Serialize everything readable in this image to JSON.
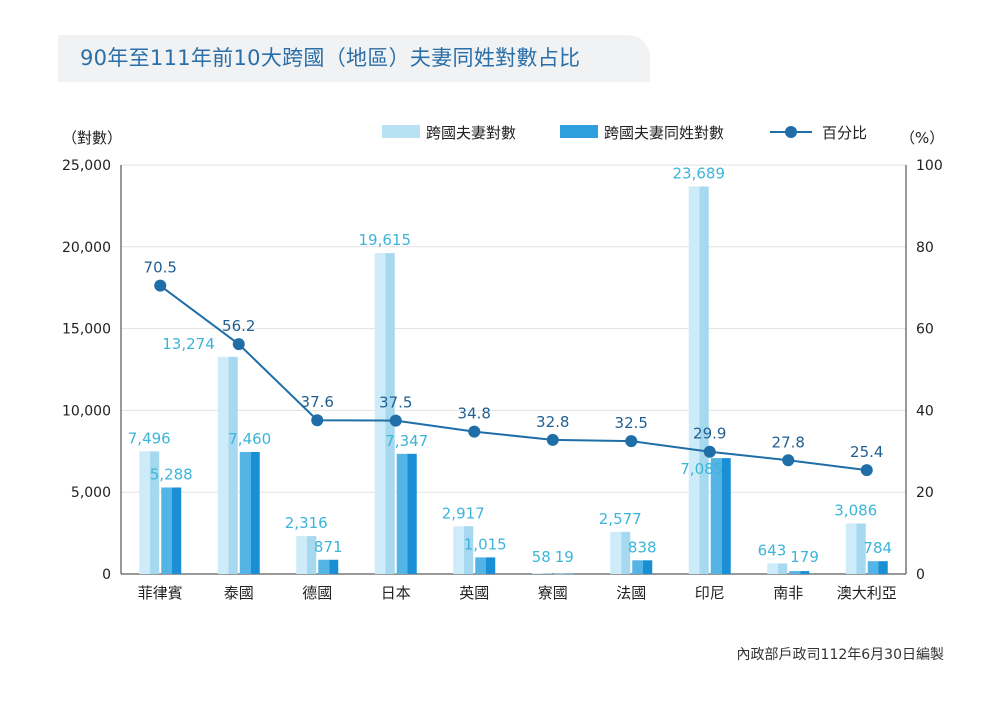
{
  "title": "90年至111年前10大跨國（地區）夫妻同姓對數占比",
  "footnote": "內政部戶政司112年6月30日編製",
  "chart_data": {
    "type": "bar",
    "categories": [
      "菲律賓",
      "泰國",
      "德國",
      "日本",
      "英國",
      "寮國",
      "法國",
      "印尼",
      "南非",
      "澳大利亞"
    ],
    "series": [
      {
        "name": "跨國夫妻對數",
        "values": [
          7496,
          13274,
          2316,
          19615,
          2917,
          58,
          2577,
          23689,
          643,
          3086
        ],
        "labels": [
          "7,496",
          "13,274",
          "2,316",
          "19,615",
          "2,917",
          "58",
          "2,577",
          "23,689",
          "643",
          "3,086"
        ],
        "color": "#b8e1f3",
        "axis": "left"
      },
      {
        "name": "跨國夫妻同姓對數",
        "values": [
          5288,
          7460,
          871,
          7347,
          1015,
          19,
          838,
          7085,
          179,
          784
        ],
        "labels": [
          "5,288",
          "7,460",
          "871",
          "7,347",
          "1,015",
          "19",
          "838",
          "7,085",
          "179",
          "784"
        ],
        "color": "#2e9ede",
        "axis": "left"
      },
      {
        "name": "百分比",
        "type": "line",
        "values": [
          70.5,
          56.2,
          37.6,
          37.5,
          34.8,
          32.8,
          32.5,
          29.9,
          27.8,
          25.4
        ],
        "labels": [
          "70.5",
          "56.2",
          "37.6",
          "37.5",
          "34.8",
          "32.8",
          "32.5",
          "29.9",
          "27.8",
          "25.4"
        ],
        "color": "#1f6ea8",
        "axis": "right"
      }
    ],
    "ylabel_left": "（對數）",
    "ylabel_right": "（%）",
    "ylim_left": [
      0,
      25000
    ],
    "ylim_right": [
      0,
      100
    ],
    "yticks_left": [
      "0",
      "5,000",
      "10,000",
      "15,000",
      "20,000",
      "25,000"
    ],
    "yticks_right": [
      "0",
      "20",
      "40",
      "60",
      "80",
      "100"
    ],
    "grid": true,
    "legend_position": "top-right",
    "label_colors": {
      "bar": "#3cb5d9",
      "line": "#1f5f93"
    }
  }
}
